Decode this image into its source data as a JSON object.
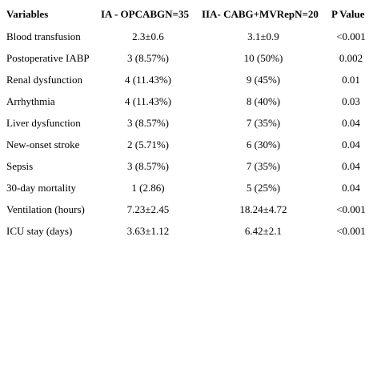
{
  "table": {
    "headers": [
      "Variables",
      "IA - OPCABGN=35",
      "IIA- CABG+MVRepN=20",
      "P Value"
    ],
    "rows": [
      [
        "Blood transfusion",
        "2.3±0.6",
        "3.1±0.9",
        "<0.001"
      ],
      [
        "Postoperative IABP",
        "3 (8.57%)",
        "10 (50%)",
        "0.002"
      ],
      [
        "Renal dysfunction",
        "4 (11.43%)",
        "9 (45%)",
        "0.01"
      ],
      [
        "Arrhythmia",
        "4 (11.43%)",
        "8 (40%)",
        "0.03"
      ],
      [
        "Liver dysfunction",
        "3 (8.57%)",
        "7 (35%)",
        "0.04"
      ],
      [
        "New-onset stroke",
        "2 (5.71%)",
        "6 (30%)",
        "0.04"
      ],
      [
        "Sepsis",
        "3 (8.57%)",
        "7 (35%)",
        "0.04"
      ],
      [
        "30-day mortality",
        "1 (2.86)",
        "5 (25%)",
        "0.04"
      ],
      [
        "Ventilation (hours)",
        "7.23±2.45",
        "18.24±4.72",
        "<0.001"
      ],
      [
        "ICU stay (days)",
        "3.63±1.12",
        "6.42±2.1",
        "<0.001"
      ]
    ]
  }
}
